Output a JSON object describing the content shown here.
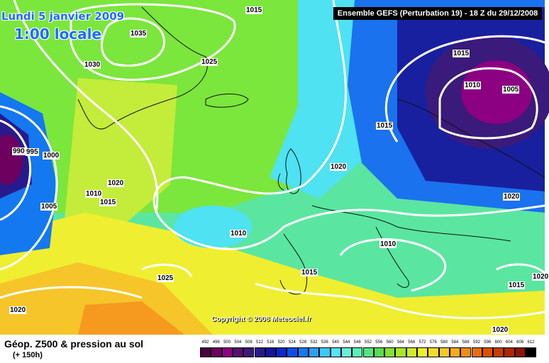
{
  "header": {
    "date": "Lundi 5 janvier 2009",
    "local_time": "1:00 locale",
    "run": "Ensemble GEFS (Perturbation 19)  -  18 Z du 29/12/2008"
  },
  "copyright": "Copyright © 2008 Meteociel.fr",
  "footer": {
    "title": "Géop. Z500 & pression au sol",
    "forecast": "(+ 150h)"
  },
  "isobar_labels": [
    "1015",
    "1035",
    "1030",
    "1025",
    "1015",
    "1010",
    "1005",
    "990",
    "995",
    "1000",
    "1015",
    "1020",
    "1010",
    "1015",
    "1005",
    "1020",
    "1010",
    "1010",
    "1015",
    "1025",
    "1020",
    "1020",
    "1020",
    "1015",
    "1020"
  ],
  "legend": {
    "values": [
      "492",
      "496",
      "500",
      "504",
      "508",
      "512",
      "516",
      "520",
      "524",
      "528",
      "532",
      "536",
      "540",
      "544",
      "548",
      "552",
      "556",
      "560",
      "564",
      "568",
      "572",
      "576",
      "580",
      "584",
      "588",
      "592",
      "596",
      "600",
      "604",
      "608",
      "612"
    ],
    "colors": [
      "#4a0040",
      "#6e0060",
      "#8c0082",
      "#5a0f6e",
      "#3a1a7a",
      "#281a8c",
      "#14149c",
      "#0a28c8",
      "#0a50e6",
      "#1478f0",
      "#28a0f5",
      "#3cc8f8",
      "#50e6fa",
      "#66f0e0",
      "#5af0b4",
      "#50e682",
      "#5adc50",
      "#82e132",
      "#aae628",
      "#d2eb28",
      "#f0f028",
      "#f5dc28",
      "#f5c828",
      "#f5aa1e",
      "#f08c14",
      "#e66e0a",
      "#dc5000",
      "#c83c00",
      "#aa2800",
      "#8c1400",
      "#000000"
    ]
  }
}
